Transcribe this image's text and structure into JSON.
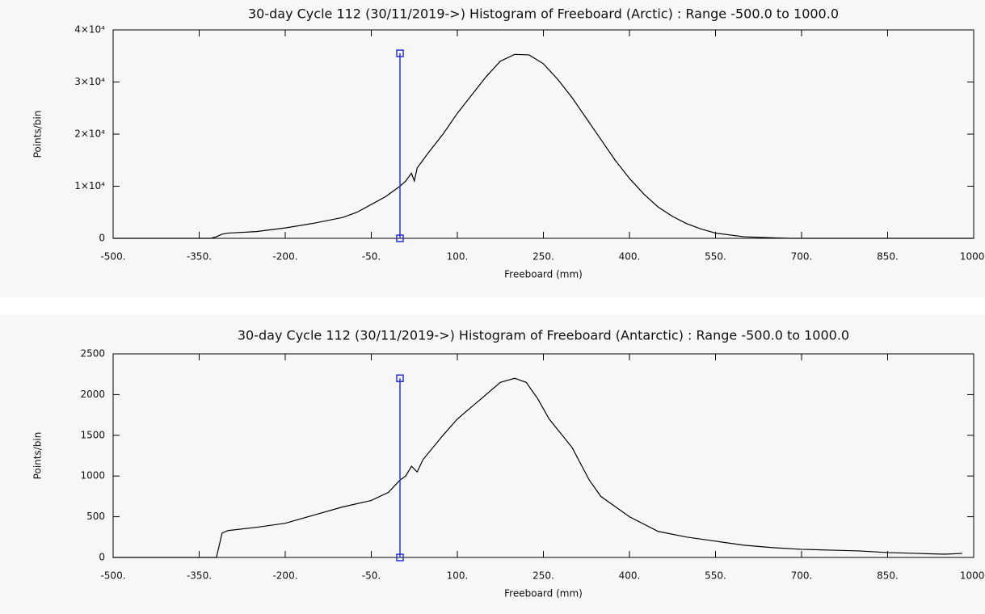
{
  "chart_data": [
    {
      "type": "line",
      "title": "30-day Cycle 112 (30/11/2019->) Histogram of Freeboard (Arctic) :  Range -500.0 to 1000.0",
      "x_label": "Freeboard (mm)",
      "y_label": "Points/bin",
      "x": [
        -500,
        -330,
        -320,
        -310,
        -300,
        -250,
        -200,
        -150,
        -100,
        -75,
        -50,
        -25,
        0,
        10,
        20,
        25,
        30,
        40,
        50,
        75,
        100,
        125,
        150,
        175,
        200,
        225,
        250,
        275,
        300,
        325,
        350,
        375,
        400,
        425,
        450,
        475,
        500,
        525,
        550,
        600,
        650,
        680,
        1000
      ],
      "values": [
        0,
        0,
        300,
        800,
        1000,
        1300,
        2000,
        2900,
        4000,
        5000,
        6500,
        8000,
        10000,
        11000,
        12500,
        11000,
        13500,
        15000,
        16500,
        20000,
        24000,
        27500,
        31000,
        34000,
        35300,
        35200,
        33500,
        30500,
        27000,
        23000,
        19000,
        15000,
        11500,
        8500,
        6000,
        4200,
        2800,
        1800,
        1000,
        300,
        100,
        0,
        0
      ],
      "color": "#000000",
      "xlim": [
        -500,
        1000
      ],
      "xticks": [
        {
          "value": -500,
          "label": "-500."
        },
        {
          "value": -350,
          "label": "-350."
        },
        {
          "value": -200,
          "label": "-200."
        },
        {
          "value": -50,
          "label": "-50."
        },
        {
          "value": 100,
          "label": "100."
        },
        {
          "value": 250,
          "label": "250."
        },
        {
          "value": 400,
          "label": "400."
        },
        {
          "value": 550,
          "label": "550."
        },
        {
          "value": 700,
          "label": "700."
        },
        {
          "value": 850,
          "label": "850."
        },
        {
          "value": 1000,
          "label": "1000."
        }
      ],
      "ylim": [
        0,
        40000
      ],
      "yticks": [
        0,
        {
          "value": 10000,
          "label": "1×10⁴"
        },
        {
          "value": 20000,
          "label": "2×10⁴"
        },
        {
          "value": 30000,
          "label": "3×10⁴"
        },
        {
          "value": 40000,
          "label": "4×10⁴"
        }
      ],
      "vertical_line": {
        "x": 0,
        "y": [
          0,
          35500
        ],
        "color": "#2233dd"
      }
    },
    {
      "type": "line",
      "title": "30-day Cycle 112 (30/11/2019->) Histogram of Freeboard (Antarctic) :  Range -500.0 to 1000.0",
      "x_label": "Freeboard (mm)",
      "y_label": "Points/bin",
      "x": [
        -500,
        -320,
        -310,
        -300,
        -250,
        -200,
        -150,
        -100,
        -50,
        -20,
        0,
        10,
        20,
        30,
        40,
        75,
        100,
        150,
        175,
        200,
        220,
        240,
        260,
        300,
        330,
        350,
        400,
        450,
        500,
        550,
        600,
        650,
        700,
        750,
        800,
        850,
        900,
        950,
        980
      ],
      "values": [
        0,
        0,
        300,
        330,
        370,
        420,
        520,
        620,
        700,
        800,
        950,
        1000,
        1120,
        1050,
        1200,
        1500,
        1700,
        2000,
        2150,
        2200,
        2150,
        1950,
        1700,
        1350,
        950,
        750,
        500,
        320,
        250,
        200,
        150,
        120,
        100,
        90,
        80,
        60,
        50,
        40,
        50
      ],
      "color": "#000000",
      "xlim": [
        -500,
        1000
      ],
      "xticks": [
        {
          "value": -500,
          "label": "-500."
        },
        {
          "value": -350,
          "label": "-350."
        },
        {
          "value": -200,
          "label": "-200."
        },
        {
          "value": -50,
          "label": "-50."
        },
        {
          "value": 100,
          "label": "100."
        },
        {
          "value": 250,
          "label": "250."
        },
        {
          "value": 400,
          "label": "400."
        },
        {
          "value": 550,
          "label": "550."
        },
        {
          "value": 700,
          "label": "700."
        },
        {
          "value": 850,
          "label": "850."
        },
        {
          "value": 1000,
          "label": "1000."
        }
      ],
      "ylim": [
        0,
        2500
      ],
      "yticks": [
        0,
        500,
        1000,
        1500,
        2000,
        2500
      ],
      "vertical_line": {
        "x": 0,
        "y": [
          0,
          2200
        ],
        "color": "#2233dd"
      }
    }
  ]
}
